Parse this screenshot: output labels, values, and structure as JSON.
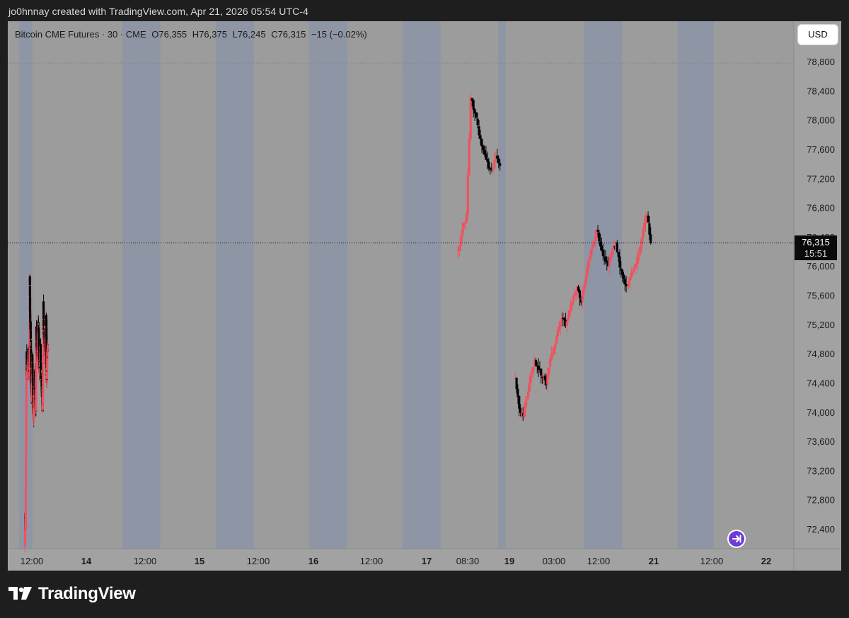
{
  "caption": "jo0hnnay created with TradingView.com, Apr 21, 2026 05:54 UTC-4",
  "legend": {
    "symbol": "Bitcoin CME Futures · 30 · CME",
    "open": "O76,355",
    "high": "H76,375",
    "low": "L76,245",
    "close": "C76,315",
    "change": "−15 (−0.02%)"
  },
  "currency_button": "USD",
  "last_price": {
    "price": "76,315",
    "countdown": "15:51"
  },
  "brand": "TradingView",
  "colors": {
    "up": "#f0525f",
    "down": "#050505",
    "session_band": "#8e96a6",
    "background": "#9c9c9c",
    "frame": "#1e1e1e"
  },
  "chart_data": {
    "type": "candlestick",
    "y_axis": {
      "range": [
        72050,
        79200
      ],
      "ticks": [
        "72,400",
        "72,800",
        "73,200",
        "73,600",
        "74,000",
        "74,400",
        "74,800",
        "75,200",
        "75,600",
        "76,000",
        "76,400",
        "76,800",
        "77,200",
        "77,600",
        "78,000",
        "78,400",
        "78,800"
      ]
    },
    "x_axis": {
      "tick_labels": [
        {
          "label": "12:00",
          "bold": false
        },
        {
          "label": "14",
          "bold": true
        },
        {
          "label": "12:00",
          "bold": false
        },
        {
          "label": "15",
          "bold": true
        },
        {
          "label": "12:00",
          "bold": false
        },
        {
          "label": "16",
          "bold": true
        },
        {
          "label": "12:00",
          "bold": false
        },
        {
          "label": "17",
          "bold": true
        },
        {
          "label": "08:30",
          "bold": false
        },
        {
          "label": "19",
          "bold": true
        },
        {
          "label": "03:00",
          "bold": false
        },
        {
          "label": "12:00",
          "bold": false
        },
        {
          "label": "21",
          "bold": true
        },
        {
          "label": "12:00",
          "bold": false
        },
        {
          "label": "22",
          "bold": true
        }
      ]
    },
    "session_bands": [
      {
        "from": 0,
        "to": 0.7
      },
      {
        "from": 5.4,
        "to": 7.4
      },
      {
        "from": 10.3,
        "to": 12.3
      },
      {
        "from": 15.2,
        "to": 17.2
      },
      {
        "from": 20.1,
        "to": 22.1
      },
      {
        "from": 25.1,
        "to": 25.5
      },
      {
        "from": 29.6,
        "to": 31.6
      },
      {
        "from": 34.5,
        "to": 36.4
      }
    ],
    "last_price_line": 76315,
    "top_reference_line": 78780,
    "x_domain": [
      -0.6,
      40.6
    ],
    "segments": [
      {
        "x0": 0.3,
        "x1": 1.5,
        "y": [
          72150,
          72550,
          72600,
          72400,
          73350,
          73600,
          74550,
          74800,
          74600,
          74500,
          74600,
          74550,
          74700,
          74650,
          74900,
          74800,
          74800,
          74600,
          74500,
          74600,
          75900,
          75400,
          75100,
          75200,
          74900,
          74800,
          74600,
          74200,
          74350,
          74100,
          74800,
          74600,
          74400,
          74400,
          74200,
          74000,
          73900,
          74100,
          74150,
          74300,
          74200,
          74600,
          74400,
          74000,
          74200,
          74000,
          74900,
          75200,
          75000,
          74800,
          74900,
          74700,
          74800,
          75200,
          75100,
          75200,
          75150,
          74900,
          74700,
          74800,
          74600,
          74500,
          74700,
          74900,
          74900,
          74600,
          74500,
          74400,
          74500,
          74300,
          74200,
          74400,
          74100,
          74000,
          74300,
          74600,
          75500,
          75200,
          75000,
          75100,
          75000,
          74950,
          74800,
          74900,
          74800,
          74900,
          75100,
          75300,
          75200,
          74600,
          74400,
          74600,
          74900,
          74800,
          74900
        ]
      },
      {
        "x0": 23.0,
        "x1": 25.2,
        "y": [
          76200,
          76500,
          76700,
          78300,
          78100,
          77800,
          77600,
          77400,
          77300,
          77500,
          77400
        ]
      },
      {
        "x0": 26.0,
        "x1": 33.1,
        "y": [
          74450,
          74050,
          73950,
          74200,
          74500,
          74700,
          74600,
          74500,
          74400,
          74700,
          74900,
          75100,
          75300,
          75200,
          75400,
          75600,
          75700,
          75500,
          75800,
          76100,
          76300,
          76500,
          76300,
          76100,
          76000,
          76200,
          76300,
          76000,
          75800,
          75700,
          75900,
          76000,
          76200,
          76500,
          76700,
          76315
        ]
      }
    ]
  }
}
